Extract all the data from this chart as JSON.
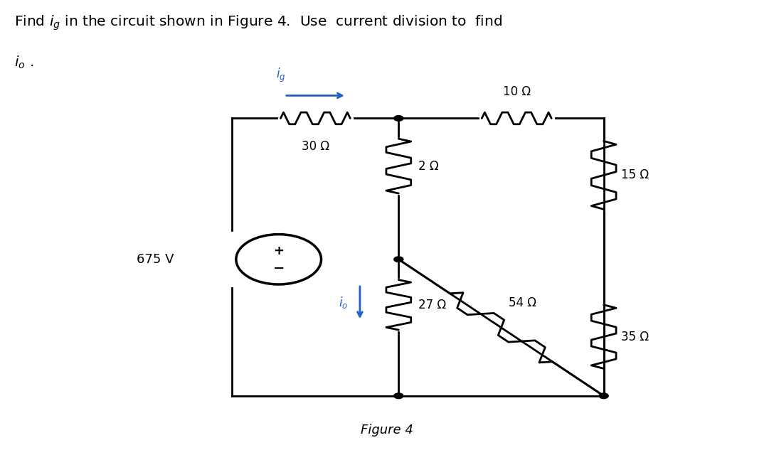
{
  "bg_color": "#ffffff",
  "line_color": "#000000",
  "arrow_color": "#2060c0",
  "text_color": "#000000",
  "resistors": {
    "R30": "30 Ω",
    "R10": "10 Ω",
    "R2": "2 Ω",
    "R15": "15 Ω",
    "R27": "27 Ω",
    "R54": "54 Ω",
    "R35": "35 Ω"
  },
  "source_label": "675 V",
  "figure_label": "Figure 4",
  "title_line1": "Find $i_g$ in the circuit shown in Figure 4.  Use  current division to  find",
  "title_line2": "$i_o$ .",
  "lw": 2.0,
  "dot_r": 0.006,
  "source_r": 0.055,
  "L": 0.3,
  "R": 0.78,
  "M": 0.515,
  "T": 0.74,
  "B": 0.13,
  "MID": 0.43,
  "scx": 0.36,
  "scy": 0.43
}
